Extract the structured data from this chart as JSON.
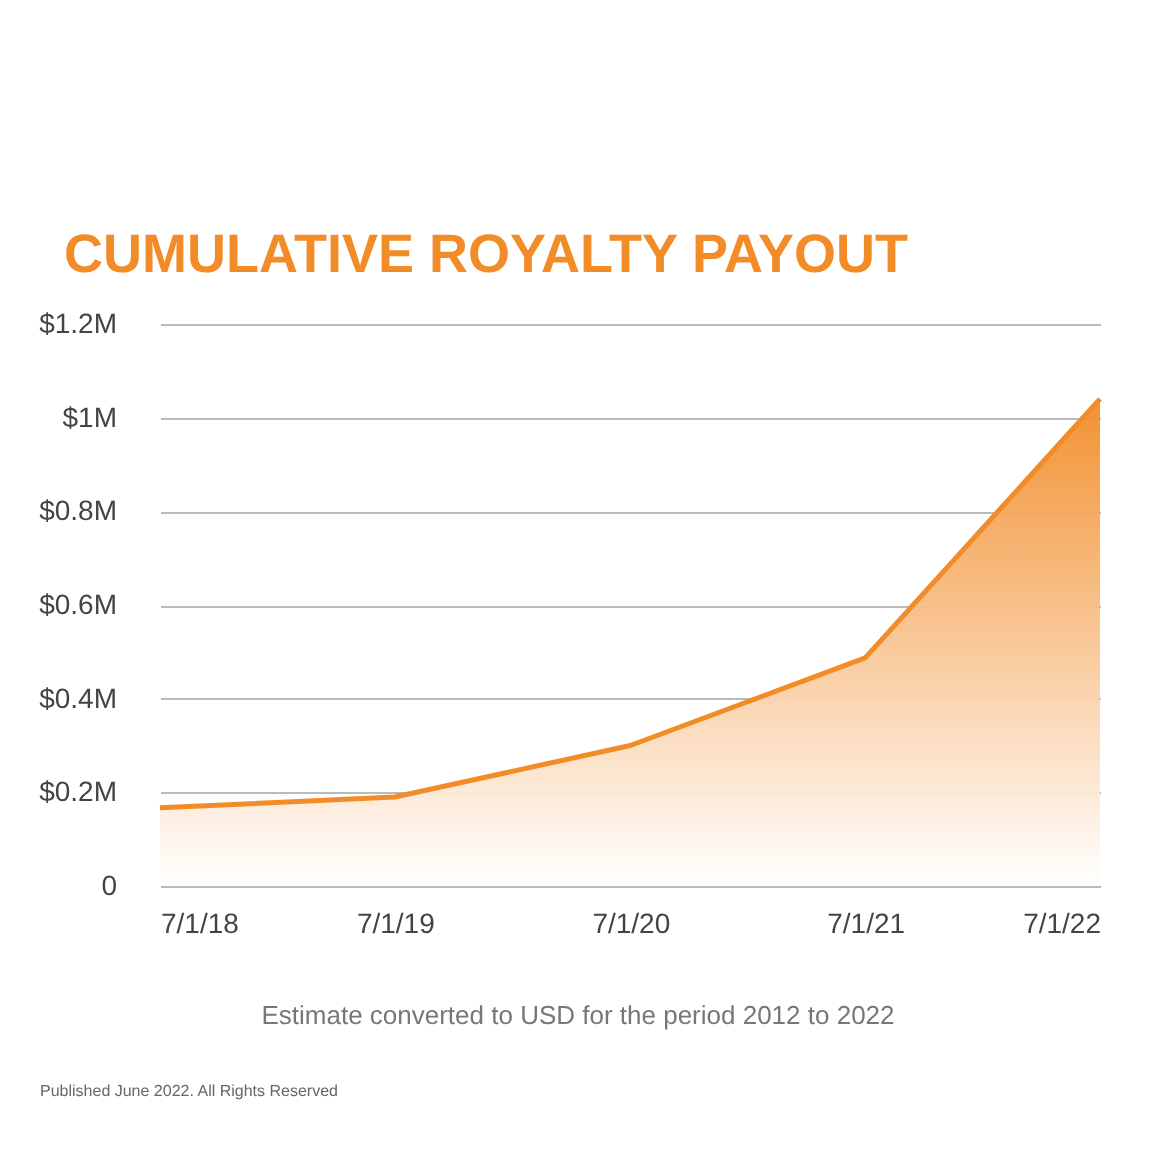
{
  "chart_data": {
    "type": "area",
    "title": "CUMULATIVE ROYALTY PAYOUT",
    "x": [
      "2018-07-01",
      "2019-07-01",
      "2020-07-01",
      "2021-07-01",
      "2022-07-01"
    ],
    "series": [
      {
        "color": "#f28c28",
        "values": [
          0.167,
          0.19,
          0.3,
          0.487,
          1.04
        ]
      }
    ],
    "xlim": [
      "2018-07-01",
      "2022-07-01"
    ],
    "xticks": [
      {
        "value": "2018-07-01",
        "label": "7/1/18"
      },
      {
        "value": "2019-07-01",
        "label": "7/1/19"
      },
      {
        "value": "2020-07-01",
        "label": "7/1/20"
      },
      {
        "value": "2021-07-01",
        "label": "7/1/21"
      },
      {
        "value": "2022-07-01",
        "label": "7/1/22"
      }
    ],
    "ylim": [
      0,
      1.2
    ],
    "yticks": [
      {
        "value": 0,
        "label": "0"
      },
      {
        "value": 0.2,
        "label": "$0.2M"
      },
      {
        "value": 0.4,
        "label": "$0.4M"
      },
      {
        "value": 0.6,
        "label": "$0.6M"
      },
      {
        "value": 0.8,
        "label": "$0.8M"
      },
      {
        "value": 1,
        "label": "$1M"
      },
      {
        "value": 1.2,
        "label": "$1.2M"
      }
    ],
    "grid": "y",
    "annotations": [
      "Estimate converted to USD for the period 2012 to 2022",
      "Published June 2022. All Rights Reserved"
    ]
  }
}
